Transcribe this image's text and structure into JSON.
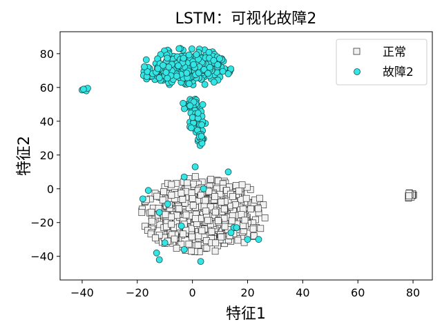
{
  "chart_data": {
    "type": "scatter",
    "title": "LSTM：可视化故障2",
    "xlabel": "特征1",
    "ylabel": "特征2",
    "xlim": [
      -48,
      87
    ],
    "ylim": [
      -54,
      93
    ],
    "xticks": [
      -40,
      -20,
      0,
      20,
      40,
      60,
      80
    ],
    "yticks": [
      -40,
      -20,
      0,
      20,
      40,
      60,
      80
    ],
    "grid": false,
    "legend_position": "top-right",
    "series": [
      {
        "name": "正常",
        "marker": "square",
        "color": "#f2f2f2",
        "edge_color": "#333333",
        "clusters": [
          {
            "center": [
              4,
              -15
            ],
            "spread": [
              14,
              14
            ],
            "count": 1100
          },
          {
            "center": [
              79,
              -4
            ],
            "spread": [
              1.2,
              1.2
            ],
            "count": 18
          }
        ]
      },
      {
        "name": "故障2",
        "marker": "circle",
        "color": "#33e6e6",
        "edge_color": "#1a4d4d",
        "points": [
          [
            -40,
            58.5
          ],
          [
            -39,
            59
          ],
          [
            -38.5,
            58
          ],
          [
            -38,
            59.5
          ],
          [
            -39.5,
            59
          ],
          [
            -3,
            7
          ],
          [
            4,
            0
          ],
          [
            13,
            10
          ],
          [
            1,
            13
          ],
          [
            -16,
            -1
          ],
          [
            -18,
            -6
          ],
          [
            -9,
            -9
          ],
          [
            -12,
            -14
          ],
          [
            -4,
            -22
          ],
          [
            -10,
            -32
          ],
          [
            -13,
            -38
          ],
          [
            -12,
            -42
          ],
          [
            -3,
            -36
          ],
          [
            3,
            -43
          ],
          [
            15,
            -23
          ],
          [
            16,
            -23
          ],
          [
            20,
            -30
          ],
          [
            24,
            -30
          ],
          [
            14,
            -26
          ]
        ],
        "clusters": [
          {
            "center": [
              -2,
              72
            ],
            "spread": [
              10,
              7
            ],
            "count": 420
          },
          {
            "center": [
              -12,
              68
            ],
            "spread": [
              4,
              5
            ],
            "count": 40
          },
          {
            "center": [
              0,
              50
            ],
            "spread": [
              3,
              3
            ],
            "count": 30
          },
          {
            "center": [
              2,
              40
            ],
            "spread": [
              2,
              5
            ],
            "count": 40
          },
          {
            "center": [
              3,
              30
            ],
            "spread": [
              1,
              3
            ],
            "count": 15
          }
        ]
      }
    ]
  }
}
